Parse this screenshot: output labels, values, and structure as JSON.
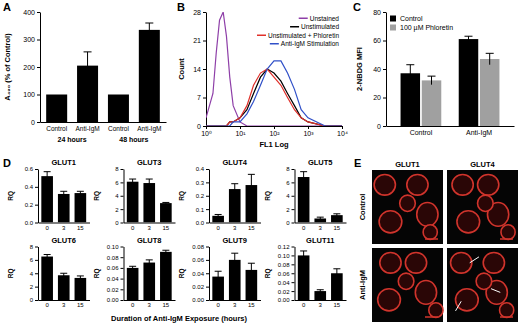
{
  "chart_data": [
    {
      "panel": "A",
      "type": "bar",
      "ylabel": "A₄₉₀ (% of Control)",
      "categories": [
        "Control",
        "Anti-IgM",
        "Control",
        "Anti-IgM"
      ],
      "group_labels": [
        "24 hours",
        "48 hours"
      ],
      "values": [
        100,
        205,
        100,
        335
      ],
      "errors": [
        null,
        50,
        null,
        25
      ],
      "color": "#000000",
      "ylim": [
        0,
        400
      ],
      "yticks": [
        0,
        100,
        200,
        300,
        400
      ]
    },
    {
      "panel": "B",
      "type": "line",
      "xlabel": "FL1 Log",
      "ylabel": "Count",
      "log": "x",
      "x": [
        1,
        1.6,
        2,
        2.5,
        3.2,
        4,
        5,
        6.3,
        10,
        16,
        25,
        40,
        63,
        100,
        160,
        250,
        400,
        630,
        1000,
        3200,
        10000
      ],
      "series": [
        {
          "name": "Unstained",
          "color": "#8e3fa8",
          "values": [
            2,
            8,
            18,
            26,
            28,
            22,
            12,
            5,
            1,
            0,
            0,
            0,
            0,
            0,
            0,
            0,
            0,
            0,
            0,
            0,
            0
          ]
        },
        {
          "name": "Unstimulated",
          "color": "#000000",
          "values": [
            0,
            0,
            0,
            0,
            0,
            0,
            1,
            1,
            2,
            4,
            8,
            12,
            14,
            13,
            11,
            8,
            5,
            2,
            1,
            0,
            0
          ]
        },
        {
          "name": "Unstimulated + Phloretin",
          "color": "#e0302a",
          "values": [
            0,
            0,
            0,
            0,
            0,
            0,
            1,
            1,
            2,
            5,
            10,
            13,
            14,
            12,
            10,
            7,
            4,
            2,
            1,
            0,
            0
          ]
        },
        {
          "name": "Anti-IgM Stimulation",
          "color": "#3050c8",
          "values": [
            0,
            0,
            0,
            0,
            0,
            0,
            0,
            1,
            1,
            3,
            6,
            10,
            14,
            16,
            16,
            13,
            9,
            4,
            2,
            0,
            0
          ]
        }
      ],
      "xlim": [
        1,
        10000
      ],
      "xticks": [
        {
          "value": 1,
          "label": "10⁰"
        },
        {
          "value": 10,
          "label": "10¹"
        },
        {
          "value": 100,
          "label": "10²"
        },
        {
          "value": 1000,
          "label": "10³"
        },
        {
          "value": 10000,
          "label": "10⁴"
        }
      ],
      "ylim": [
        0,
        28
      ],
      "yticks": [
        0,
        7,
        14,
        21,
        28
      ],
      "legend": "upper right"
    },
    {
      "panel": "C",
      "type": "bar",
      "ylabel": "2-NBDG MFI",
      "categories": [
        "Control",
        "Anti-IgM"
      ],
      "series": [
        {
          "name": "Control",
          "color": "#000000",
          "values": [
            37,
            61
          ],
          "errors": [
            6,
            2
          ]
        },
        {
          "name": "100 µM Phloretin",
          "color": "#a0a0a0",
          "values": [
            32,
            47
          ],
          "errors": [
            3,
            4
          ]
        }
      ],
      "ylim": [
        0,
        80
      ],
      "yticks": [
        0,
        20,
        40,
        60,
        80
      ],
      "legend": "upper left"
    },
    {
      "panel": "D",
      "type": "bar",
      "xlabel": "Duration of Anti-IgM Exposure (hours)",
      "charts": [
        {
          "title": "GLUT1",
          "ylabel": "RQ",
          "categories": [
            "0",
            "3",
            "15"
          ],
          "values": [
            0.52,
            0.32,
            0.33
          ],
          "errors": [
            0.05,
            0.03,
            0.02
          ],
          "color": "#000000",
          "ylim": [
            0,
            0.6
          ],
          "yticks": [
            {
              "value": 0,
              "label": "0.0"
            },
            0.2,
            0.4,
            0.6
          ]
        },
        {
          "title": "GLUT3",
          "ylabel": "RQ",
          "categories": [
            "0",
            "3",
            "15"
          ],
          "values": [
            6.1,
            5.9,
            2.9
          ],
          "errors": [
            0.4,
            0.6,
            0.1
          ],
          "color": "#000000",
          "ylim": [
            0,
            8
          ],
          "yticks": [
            0,
            2,
            4,
            6,
            8
          ]
        },
        {
          "title": "GLUT4",
          "ylabel": "RQ",
          "categories": [
            "0",
            "3",
            "15"
          ],
          "values": [
            0.05,
            0.25,
            0.28
          ],
          "errors": [
            0.01,
            0.04,
            0.08
          ],
          "color": "#000000",
          "ylim": [
            0,
            0.4
          ],
          "yticks": [
            {
              "value": 0,
              "label": "0.0"
            },
            0.1,
            0.2,
            0.3,
            0.4
          ]
        },
        {
          "title": "GLUT5",
          "ylabel": "RQ",
          "categories": [
            "0",
            "3",
            "15"
          ],
          "values": [
            6.8,
            0.6,
            1.1
          ],
          "errors": [
            0.8,
            0.2,
            0.2
          ],
          "color": "#000000",
          "ylim": [
            0,
            8
          ],
          "yticks": [
            0,
            2,
            4,
            6,
            8
          ]
        },
        {
          "title": "GLUT6",
          "ylabel": "RQ",
          "categories": [
            "0",
            "3",
            "15"
          ],
          "values": [
            6.5,
            3.7,
            3.3
          ],
          "errors": [
            0.3,
            0.3,
            0.3
          ],
          "color": "#000000",
          "ylim": [
            0,
            8
          ],
          "yticks": [
            0,
            2,
            4,
            6,
            8
          ]
        },
        {
          "title": "GLUT8",
          "ylabel": "RQ",
          "categories": [
            "0",
            "3",
            "15"
          ],
          "values": [
            0.06,
            0.07,
            0.09
          ],
          "errors": [
            0.003,
            0.005,
            0.003
          ],
          "color": "#000000",
          "ylim": [
            0,
            0.1
          ],
          "yticks": [
            {
              "value": 0,
              "label": "0.00"
            },
            0.02,
            0.04,
            0.06,
            0.08,
            {
              "value": 0.1,
              "label": "0.10"
            }
          ]
        },
        {
          "title": "GLUT9",
          "ylabel": "RQ",
          "categories": [
            "0",
            "3",
            "15"
          ],
          "values": [
            0.035,
            0.06,
            0.045
          ],
          "errors": [
            0.008,
            0.01,
            0.01
          ],
          "color": "#000000",
          "ylim": [
            0,
            0.08
          ],
          "yticks": [
            {
              "value": 0,
              "label": "0.00"
            },
            0.02,
            0.04,
            0.06,
            0.08
          ]
        },
        {
          "title": "GLUT11",
          "ylabel": "RQ",
          "categories": [
            "0",
            "3",
            "15"
          ],
          "values": [
            0.1,
            0.02,
            0.06
          ],
          "errors": [
            0.01,
            0.003,
            0.01
          ],
          "color": "#000000",
          "ylim": [
            0,
            0.12
          ],
          "yticks": [
            {
              "value": 0,
              "label": "0.00"
            },
            0.02,
            0.04,
            0.06,
            0.08,
            {
              "value": 0.1,
              "label": "0.10"
            },
            0.12
          ]
        }
      ]
    }
  ],
  "image_panel": {
    "panel": "E",
    "columns": [
      "GLUT1",
      "GLUT4"
    ],
    "rows": [
      "Control",
      "Anti-IgM"
    ]
  }
}
